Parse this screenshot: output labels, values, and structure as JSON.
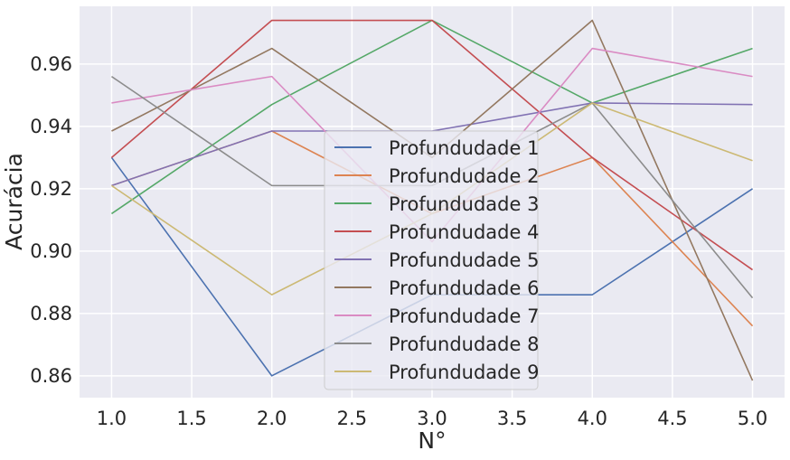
{
  "chart_data": {
    "type": "line",
    "xlabel": "N°",
    "ylabel": "Acurácia",
    "xlim": [
      0.8,
      5.2
    ],
    "ylim": [
      0.853,
      0.9785
    ],
    "xticks": [
      1.0,
      1.5,
      2.0,
      2.5,
      3.0,
      3.5,
      4.0,
      4.5,
      5.0
    ],
    "xtick_labels": [
      "1.0",
      "1.5",
      "2.0",
      "2.5",
      "3.0",
      "3.5",
      "4.0",
      "4.5",
      "5.0"
    ],
    "yticks": [
      0.86,
      0.88,
      0.9,
      0.92,
      0.94,
      0.96
    ],
    "ytick_labels": [
      "0.86",
      "0.88",
      "0.90",
      "0.92",
      "0.94",
      "0.96"
    ],
    "grid": true,
    "legend_position": "center",
    "x": [
      1,
      2,
      3,
      4,
      5
    ],
    "series": [
      {
        "name": "Profundudade 1",
        "color": "#4c72b0",
        "values": [
          0.93,
          0.86,
          0.886,
          0.886,
          0.92
        ]
      },
      {
        "name": "Profundudade 2",
        "color": "#dd8452",
        "values": [
          0.921,
          0.9385,
          0.912,
          0.93,
          0.876
        ]
      },
      {
        "name": "Profundudade 3",
        "color": "#55a868",
        "values": [
          0.912,
          0.947,
          0.974,
          0.9475,
          0.965
        ]
      },
      {
        "name": "Profundudade 4",
        "color": "#c44e52",
        "values": [
          0.93,
          0.974,
          0.974,
          0.93,
          0.894
        ]
      },
      {
        "name": "Profundudade 5",
        "color": "#8172b3",
        "values": [
          0.921,
          0.9385,
          0.9385,
          0.9475,
          0.947
        ]
      },
      {
        "name": "Profundudade 6",
        "color": "#937860",
        "values": [
          0.9385,
          0.965,
          0.93,
          0.974,
          0.8585
        ]
      },
      {
        "name": "Profundudade 7",
        "color": "#da8bc3",
        "values": [
          0.9475,
          0.956,
          0.903,
          0.965,
          0.956
        ]
      },
      {
        "name": "Profundudade 8",
        "color": "#8c8c8c",
        "values": [
          0.956,
          0.921,
          0.921,
          0.9475,
          0.885
        ]
      },
      {
        "name": "Profundudade 9",
        "color": "#ccb974",
        "values": [
          0.921,
          0.886,
          0.912,
          0.9475,
          0.929
        ]
      }
    ]
  }
}
